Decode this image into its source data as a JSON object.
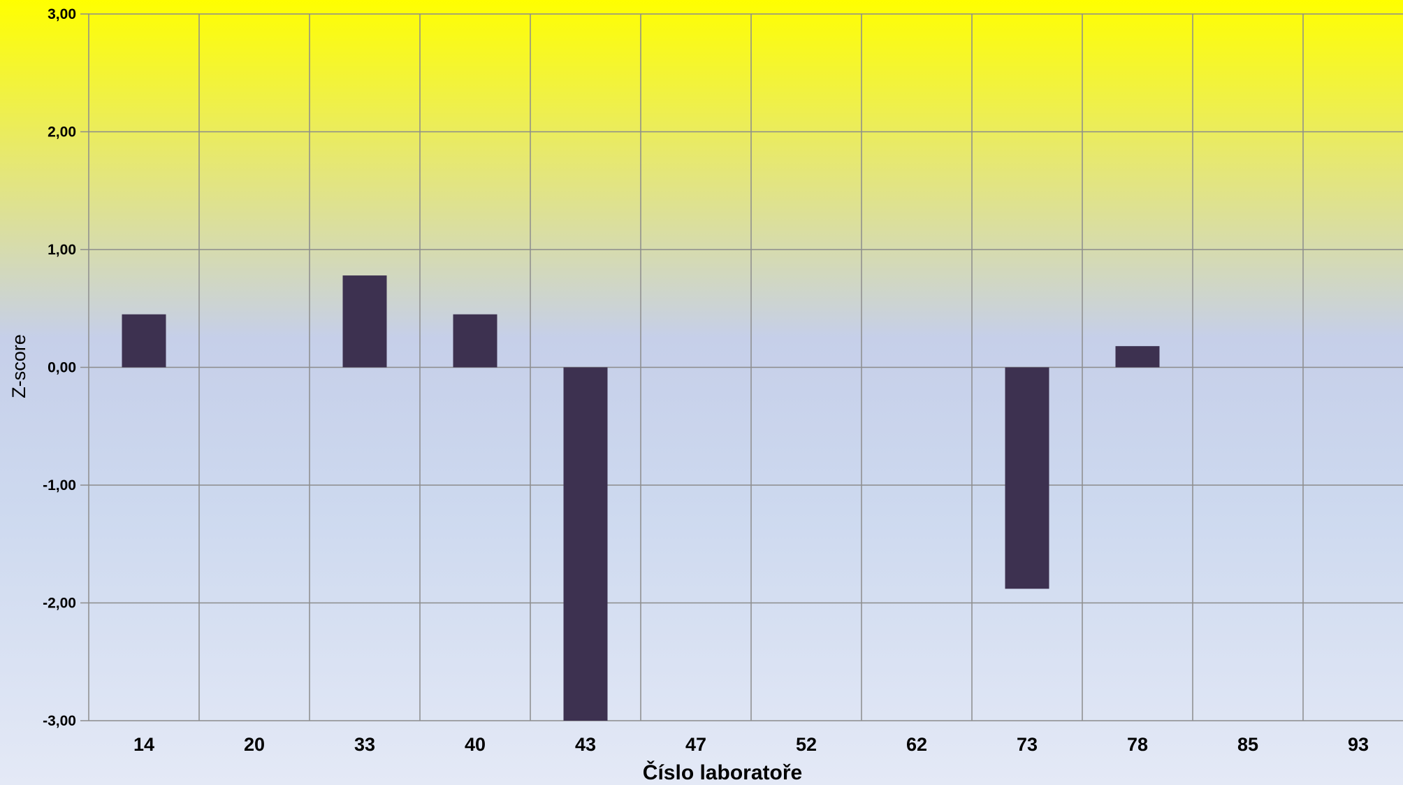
{
  "chart_data": {
    "type": "bar",
    "title": "",
    "xlabel": "Číslo laboratoře",
    "ylabel": "Z-score",
    "categories": [
      "14",
      "20",
      "33",
      "40",
      "43",
      "47",
      "52",
      "62",
      "73",
      "78",
      "85",
      "93"
    ],
    "series": [
      {
        "values": [
          0.45,
          0,
          0.78,
          0.45,
          -3.0,
          0,
          0,
          0,
          -1.88,
          0.18,
          0,
          0
        ]
      }
    ],
    "ylim": [
      -3,
      3
    ],
    "yticks": [
      "3,00",
      "2,00",
      "1,00",
      "0,00",
      "-1,00",
      "-2,00",
      "-3,00"
    ],
    "ytick_values": [
      3,
      2,
      1,
      0,
      -1,
      -2,
      -3
    ],
    "grid": true,
    "legend": "none",
    "colors": {
      "bar": "#3d3150",
      "grid": "#8c8c8c"
    }
  }
}
